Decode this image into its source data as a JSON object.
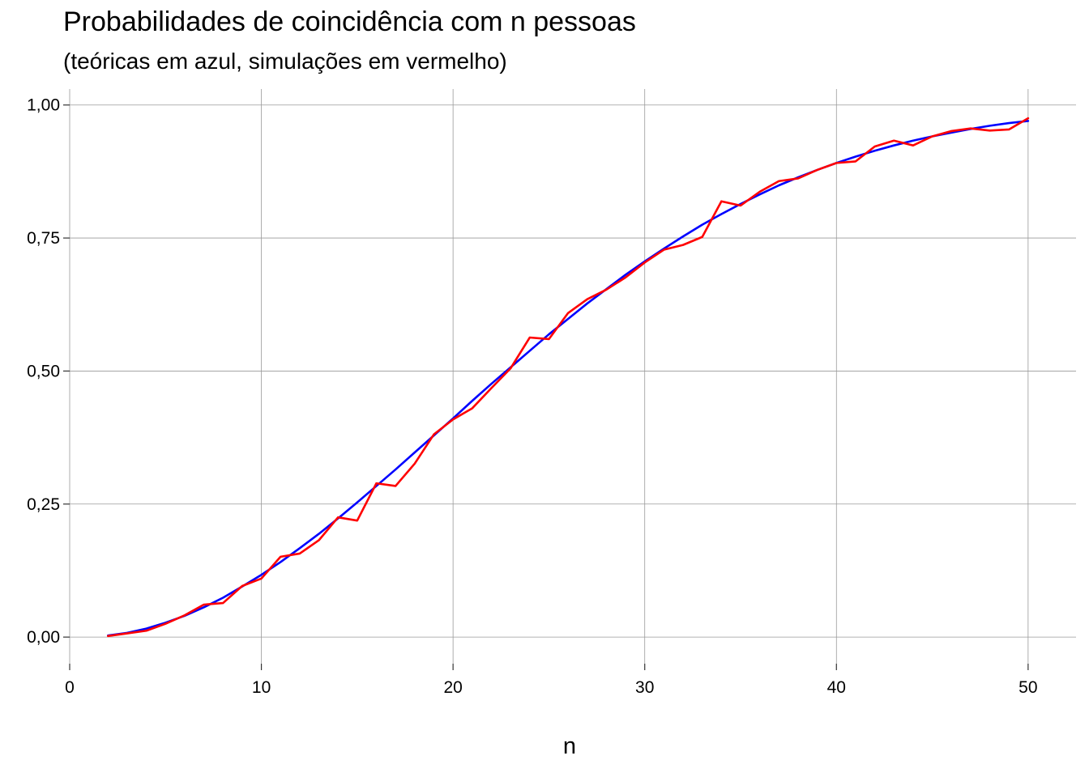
{
  "chart_data": {
    "type": "line",
    "title": "Probabilidades de coincidência com n pessoas",
    "subtitle": "(teóricas em azul, simulações em vermelho)",
    "xlabel": "n",
    "ylabel": "",
    "xlim": [
      0,
      52.5
    ],
    "ylim": [
      -0.05,
      1.03
    ],
    "x_ticks": [
      0,
      10,
      20,
      30,
      40,
      50
    ],
    "x_tick_labels": [
      "0",
      "10",
      "20",
      "30",
      "40",
      "50"
    ],
    "y_ticks": [
      0,
      0.25,
      0.5,
      0.75,
      1
    ],
    "y_tick_labels": [
      "0,00",
      "0,25",
      "0,50",
      "0,75",
      "1,00"
    ],
    "grid": true,
    "legend": "none",
    "x": [
      2,
      3,
      4,
      5,
      6,
      7,
      8,
      9,
      10,
      11,
      12,
      13,
      14,
      15,
      16,
      17,
      18,
      19,
      20,
      21,
      22,
      23,
      24,
      25,
      26,
      27,
      28,
      29,
      30,
      31,
      32,
      33,
      34,
      35,
      36,
      37,
      38,
      39,
      40,
      41,
      42,
      43,
      44,
      45,
      46,
      47,
      48,
      49,
      50
    ],
    "series": [
      {
        "color": "#0000ff",
        "values": [
          0.003,
          0.008,
          0.016,
          0.027,
          0.04,
          0.056,
          0.074,
          0.095,
          0.117,
          0.141,
          0.167,
          0.194,
          0.223,
          0.253,
          0.284,
          0.315,
          0.347,
          0.379,
          0.411,
          0.444,
          0.476,
          0.507,
          0.538,
          0.569,
          0.598,
          0.627,
          0.654,
          0.681,
          0.706,
          0.73,
          0.753,
          0.775,
          0.795,
          0.814,
          0.832,
          0.849,
          0.864,
          0.878,
          0.891,
          0.903,
          0.914,
          0.924,
          0.933,
          0.941,
          0.948,
          0.955,
          0.961,
          0.966,
          0.97
        ]
      },
      {
        "color": "#ff0000",
        "values": [
          0.002,
          0.007,
          0.012,
          0.025,
          0.041,
          0.061,
          0.064,
          0.096,
          0.11,
          0.151,
          0.157,
          0.182,
          0.225,
          0.219,
          0.289,
          0.284,
          0.326,
          0.381,
          0.409,
          0.43,
          0.468,
          0.505,
          0.563,
          0.56,
          0.609,
          0.635,
          0.653,
          0.676,
          0.704,
          0.728,
          0.737,
          0.752,
          0.819,
          0.811,
          0.837,
          0.857,
          0.862,
          0.878,
          0.891,
          0.894,
          0.922,
          0.933,
          0.924,
          0.941,
          0.951,
          0.956,
          0.952,
          0.954,
          0.975
        ]
      }
    ]
  }
}
